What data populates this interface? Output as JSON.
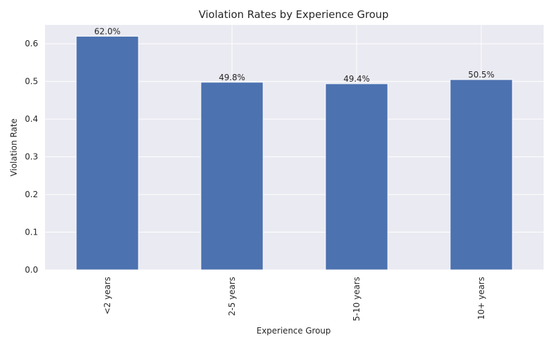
{
  "chart_data": {
    "type": "bar",
    "title": "Violation Rates by Experience Group",
    "xlabel": "Experience Group",
    "ylabel": "Violation Rate",
    "categories": [
      "<2 years",
      "2-5 years",
      "5-10 years",
      "10+ years"
    ],
    "values": [
      0.62,
      0.498,
      0.494,
      0.505
    ],
    "data_labels": [
      "62.0%",
      "49.8%",
      "49.4%",
      "50.5%"
    ],
    "ylim": [
      0,
      0.65
    ],
    "yticks": [
      "0.0",
      "0.1",
      "0.2",
      "0.3",
      "0.4",
      "0.5",
      "0.6"
    ],
    "grid": true,
    "bar_color": "#4C72B0",
    "plot_background": "#EAEAF2",
    "grid_color": "#FFFFFF"
  }
}
